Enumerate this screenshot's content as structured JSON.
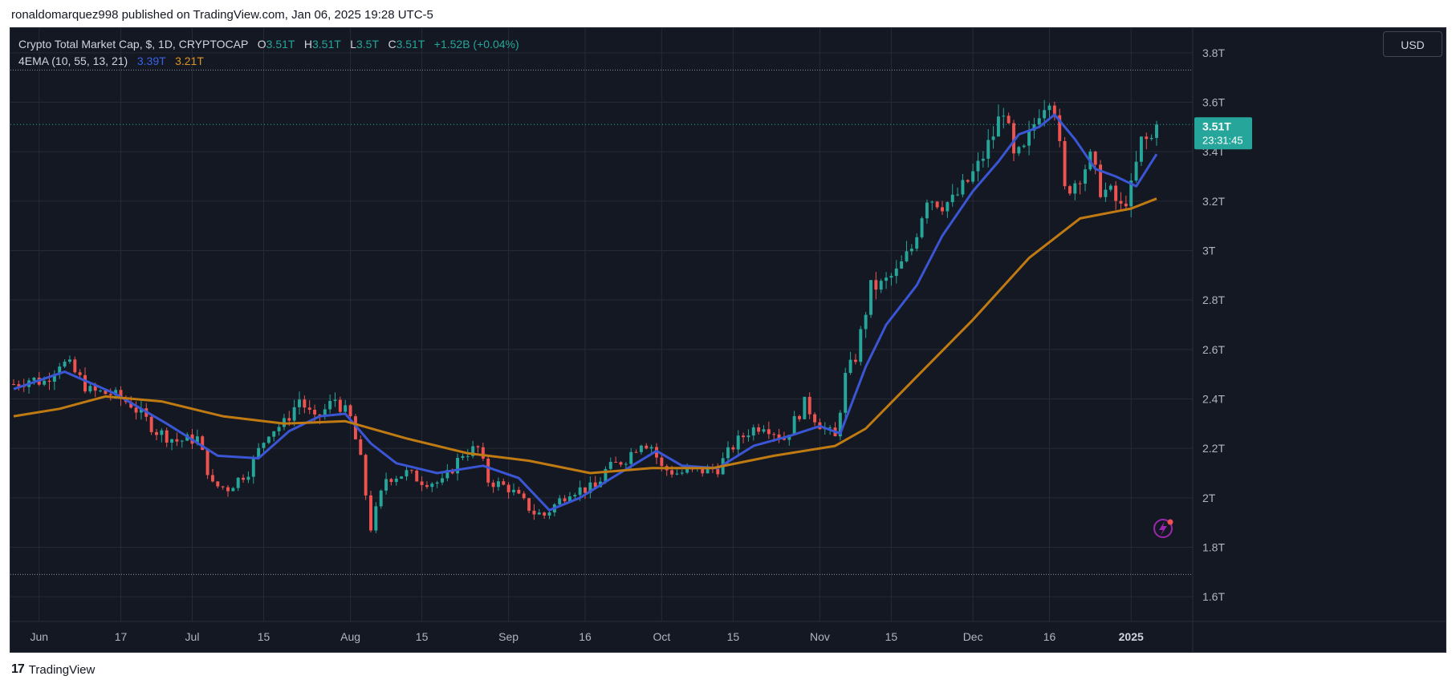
{
  "header": {
    "published_line": "ronaldomarquez998 published on TradingView.com, Jan 06, 2025 19:28 UTC-5"
  },
  "legend": {
    "symbol": "Crypto Total Market Cap, $, 1D, CRYPTOCAP",
    "o_label": "O",
    "o_value": "3.51T",
    "h_label": "H",
    "h_value": "3.51T",
    "l_label": "L",
    "l_value": "3.5T",
    "c_label": "C",
    "c_value": "3.51T",
    "change": "+1.52B (+0.04%)",
    "indicator_name": "4EMA (10, 55, 13, 21)",
    "ema_fast_value": "3.39T",
    "ema_slow_value": "3.21T"
  },
  "toolbar": {
    "currency": "USD"
  },
  "price_label": {
    "price": "3.51T",
    "countdown": "23:31:45"
  },
  "footer": {
    "brand": "TradingView",
    "logo_glyph": "17"
  },
  "colors": {
    "background": "#141823",
    "up": "#26a69a",
    "down": "#ef5350",
    "ema_fast": "#3a56d4",
    "ema_slow": "#c07a12",
    "grid": "#262a35",
    "text": "#b2b5be"
  },
  "chart_data": {
    "type": "candlestick",
    "title": "Crypto Total Market Cap, $, 1D, CRYPTOCAP",
    "x_range": [
      "2024-05-27",
      "2025-01-06"
    ],
    "ylim": [
      1.5,
      3.9
    ],
    "y_ticks": [
      1.6,
      1.8,
      2.0,
      2.2,
      2.4,
      2.6,
      2.8,
      3.0,
      3.2,
      3.4,
      3.6,
      3.8
    ],
    "y_tick_labels": [
      "1.6T",
      "1.8T",
      "2T",
      "2.2T",
      "2.4T",
      "2.6T",
      "2.8T",
      "3T",
      "3.2T",
      "3.4T",
      "3.6T",
      "3.8T"
    ],
    "x_ticks": [
      {
        "date": "2024-06-01",
        "label": "Jun"
      },
      {
        "date": "2024-06-17",
        "label": "17"
      },
      {
        "date": "2024-07-01",
        "label": "Jul"
      },
      {
        "date": "2024-07-15",
        "label": "15"
      },
      {
        "date": "2024-08-01",
        "label": "Aug"
      },
      {
        "date": "2024-08-15",
        "label": "15"
      },
      {
        "date": "2024-09-01",
        "label": "Sep"
      },
      {
        "date": "2024-09-16",
        "label": "16"
      },
      {
        "date": "2024-10-01",
        "label": "Oct"
      },
      {
        "date": "2024-10-15",
        "label": "15"
      },
      {
        "date": "2024-11-01",
        "label": "Nov"
      },
      {
        "date": "2024-11-15",
        "label": "15"
      },
      {
        "date": "2024-12-01",
        "label": "Dec"
      },
      {
        "date": "2024-12-16",
        "label": "16"
      },
      {
        "date": "2025-01-01",
        "label": "2025"
      }
    ],
    "range_lines": [
      3.73,
      1.69
    ],
    "last_price": 3.51,
    "closes_anchor": [
      [
        "2024-05-27",
        2.46
      ],
      [
        "2024-05-30",
        2.48
      ],
      [
        "2024-06-02",
        2.47
      ],
      [
        "2024-06-05",
        2.55
      ],
      [
        "2024-06-07",
        2.53
      ],
      [
        "2024-06-11",
        2.43
      ],
      [
        "2024-06-15",
        2.42
      ],
      [
        "2024-06-19",
        2.38
      ],
      [
        "2024-06-24",
        2.27
      ],
      [
        "2024-06-28",
        2.23
      ],
      [
        "2024-07-02",
        2.24
      ],
      [
        "2024-07-05",
        2.05
      ],
      [
        "2024-07-08",
        2.04
      ],
      [
        "2024-07-12",
        2.11
      ],
      [
        "2024-07-16",
        2.27
      ],
      [
        "2024-07-19",
        2.3
      ],
      [
        "2024-07-22",
        2.4
      ],
      [
        "2024-07-25",
        2.31
      ],
      [
        "2024-07-29",
        2.4
      ],
      [
        "2024-08-01",
        2.32
      ],
      [
        "2024-08-03",
        2.15
      ],
      [
        "2024-08-05",
        1.88
      ],
      [
        "2024-08-08",
        2.08
      ],
      [
        "2024-08-12",
        2.1
      ],
      [
        "2024-08-15",
        2.07
      ],
      [
        "2024-08-19",
        2.06
      ],
      [
        "2024-08-23",
        2.18
      ],
      [
        "2024-08-26",
        2.2
      ],
      [
        "2024-08-28",
        2.07
      ],
      [
        "2024-09-01",
        2.04
      ],
      [
        "2024-09-06",
        1.94
      ],
      [
        "2024-09-08",
        1.93
      ],
      [
        "2024-09-13",
        2.03
      ],
      [
        "2024-09-18",
        2.04
      ],
      [
        "2024-09-20",
        2.11
      ],
      [
        "2024-09-24",
        2.16
      ],
      [
        "2024-09-27",
        2.23
      ],
      [
        "2024-09-29",
        2.21
      ],
      [
        "2024-10-01",
        2.12
      ],
      [
        "2024-10-04",
        2.1
      ],
      [
        "2024-10-09",
        2.11
      ],
      [
        "2024-10-12",
        2.12
      ],
      [
        "2024-10-15",
        2.21
      ],
      [
        "2024-10-18",
        2.27
      ],
      [
        "2024-10-21",
        2.3
      ],
      [
        "2024-10-25",
        2.24
      ],
      [
        "2024-10-29",
        2.38
      ],
      [
        "2024-11-01",
        2.3
      ],
      [
        "2024-11-04",
        2.24
      ],
      [
        "2024-11-06",
        2.49
      ],
      [
        "2024-11-08",
        2.57
      ],
      [
        "2024-11-11",
        2.85
      ],
      [
        "2024-11-13",
        2.86
      ],
      [
        "2024-11-16",
        2.91
      ],
      [
        "2024-11-19",
        3.01
      ],
      [
        "2024-11-22",
        3.22
      ],
      [
        "2024-11-25",
        3.19
      ],
      [
        "2024-11-27",
        3.2
      ],
      [
        "2024-11-30",
        3.28
      ],
      [
        "2024-12-02",
        3.34
      ],
      [
        "2024-12-05",
        3.47
      ],
      [
        "2024-12-07",
        3.58
      ],
      [
        "2024-12-09",
        3.37
      ],
      [
        "2024-12-11",
        3.4
      ],
      [
        "2024-12-14",
        3.57
      ],
      [
        "2024-12-16",
        3.63
      ],
      [
        "2024-12-17",
        3.58
      ],
      [
        "2024-12-19",
        3.24
      ],
      [
        "2024-12-21",
        3.28
      ],
      [
        "2024-12-24",
        3.37
      ],
      [
        "2024-12-26",
        3.25
      ],
      [
        "2024-12-28",
        3.23
      ],
      [
        "2024-12-30",
        3.17
      ],
      [
        "2025-01-01",
        3.25
      ],
      [
        "2025-01-03",
        3.44
      ],
      [
        "2025-01-05",
        3.45
      ],
      [
        "2025-01-06",
        3.51
      ]
    ],
    "series": [
      {
        "name": "3.39T",
        "type": "line",
        "points": [
          [
            "2024-05-27",
            2.44
          ],
          [
            "2024-06-06",
            2.51
          ],
          [
            "2024-06-16",
            2.42
          ],
          [
            "2024-06-26",
            2.3
          ],
          [
            "2024-07-06",
            2.17
          ],
          [
            "2024-07-14",
            2.16
          ],
          [
            "2024-07-20",
            2.27
          ],
          [
            "2024-07-26",
            2.33
          ],
          [
            "2024-07-31",
            2.34
          ],
          [
            "2024-08-05",
            2.22
          ],
          [
            "2024-08-10",
            2.14
          ],
          [
            "2024-08-18",
            2.1
          ],
          [
            "2024-08-27",
            2.13
          ],
          [
            "2024-09-03",
            2.08
          ],
          [
            "2024-09-09",
            1.95
          ],
          [
            "2024-09-15",
            2.0
          ],
          [
            "2024-09-22",
            2.09
          ],
          [
            "2024-09-30",
            2.19
          ],
          [
            "2024-10-05",
            2.13
          ],
          [
            "2024-10-12",
            2.12
          ],
          [
            "2024-10-19",
            2.21
          ],
          [
            "2024-10-26",
            2.25
          ],
          [
            "2024-11-01",
            2.29
          ],
          [
            "2024-11-05",
            2.26
          ],
          [
            "2024-11-10",
            2.53
          ],
          [
            "2024-11-14",
            2.7
          ],
          [
            "2024-11-20",
            2.86
          ],
          [
            "2024-11-25",
            3.06
          ],
          [
            "2024-12-01",
            3.24
          ],
          [
            "2024-12-06",
            3.36
          ],
          [
            "2024-12-10",
            3.47
          ],
          [
            "2024-12-14",
            3.5
          ],
          [
            "2024-12-17",
            3.55
          ],
          [
            "2024-12-21",
            3.45
          ],
          [
            "2024-12-25",
            3.33
          ],
          [
            "2024-12-29",
            3.3
          ],
          [
            "2025-01-02",
            3.26
          ],
          [
            "2025-01-06",
            3.39
          ]
        ]
      },
      {
        "name": "3.21T",
        "type": "line",
        "points": [
          [
            "2024-05-27",
            2.33
          ],
          [
            "2024-06-05",
            2.36
          ],
          [
            "2024-06-14",
            2.41
          ],
          [
            "2024-06-25",
            2.39
          ],
          [
            "2024-07-07",
            2.33
          ],
          [
            "2024-07-19",
            2.3
          ],
          [
            "2024-07-31",
            2.31
          ],
          [
            "2024-08-12",
            2.24
          ],
          [
            "2024-08-24",
            2.18
          ],
          [
            "2024-09-05",
            2.15
          ],
          [
            "2024-09-17",
            2.1
          ],
          [
            "2024-09-29",
            2.12
          ],
          [
            "2024-10-11",
            2.12
          ],
          [
            "2024-10-23",
            2.17
          ],
          [
            "2024-11-04",
            2.21
          ],
          [
            "2024-11-10",
            2.28
          ],
          [
            "2024-11-20",
            2.49
          ],
          [
            "2024-12-01",
            2.72
          ],
          [
            "2024-12-12",
            2.97
          ],
          [
            "2024-12-22",
            3.13
          ],
          [
            "2025-01-01",
            3.17
          ],
          [
            "2025-01-06",
            3.21
          ]
        ]
      }
    ]
  }
}
